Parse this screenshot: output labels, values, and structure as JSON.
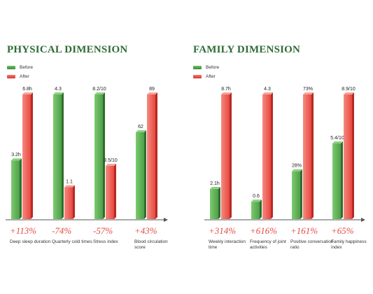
{
  "colors": {
    "before": "#4f9e4a",
    "after": "#e8473f",
    "title": "#2e6b34",
    "axis": "#555555"
  },
  "chart_data": [
    {
      "type": "bar",
      "title": "PHYSICAL DIMENSION",
      "legend_position": "top-left",
      "categories": [
        "Deep sleep duration",
        "Quarterly cold times",
        "Stress index",
        "Blood circulation score"
      ],
      "series": [
        {
          "name": "Before",
          "values": [
            3.2,
            4.3,
            8.2,
            62
          ],
          "labels": [
            "3.2h",
            "4.3",
            "8.2/10",
            "62"
          ]
        },
        {
          "name": "After",
          "values": [
            6.8,
            1.1,
            3.5,
            89
          ],
          "labels": [
            "6.8h",
            "1.1",
            "3.5/10",
            "89"
          ]
        }
      ],
      "changes": [
        "+113%",
        "-74%",
        "-57%",
        "+43%"
      ]
    },
    {
      "type": "bar",
      "title": "FAMILY DIMENSION",
      "legend_position": "top-left",
      "categories": [
        "Weekly interaction time",
        "Frequency of joint activities",
        "Positive conversation ratio",
        "Family happiness index"
      ],
      "series": [
        {
          "name": "Before",
          "values": [
            2.1,
            0.6,
            28,
            5.4
          ],
          "labels": [
            "2.1h",
            "0.6",
            "28%",
            "5.4/10"
          ]
        },
        {
          "name": "After",
          "values": [
            8.7,
            4.3,
            73,
            8.9
          ],
          "labels": [
            "8.7h",
            "4.3",
            "73%",
            "8.9/10"
          ]
        }
      ],
      "changes": [
        "+314%",
        "+616%",
        "+161%",
        "+65%"
      ]
    }
  ]
}
